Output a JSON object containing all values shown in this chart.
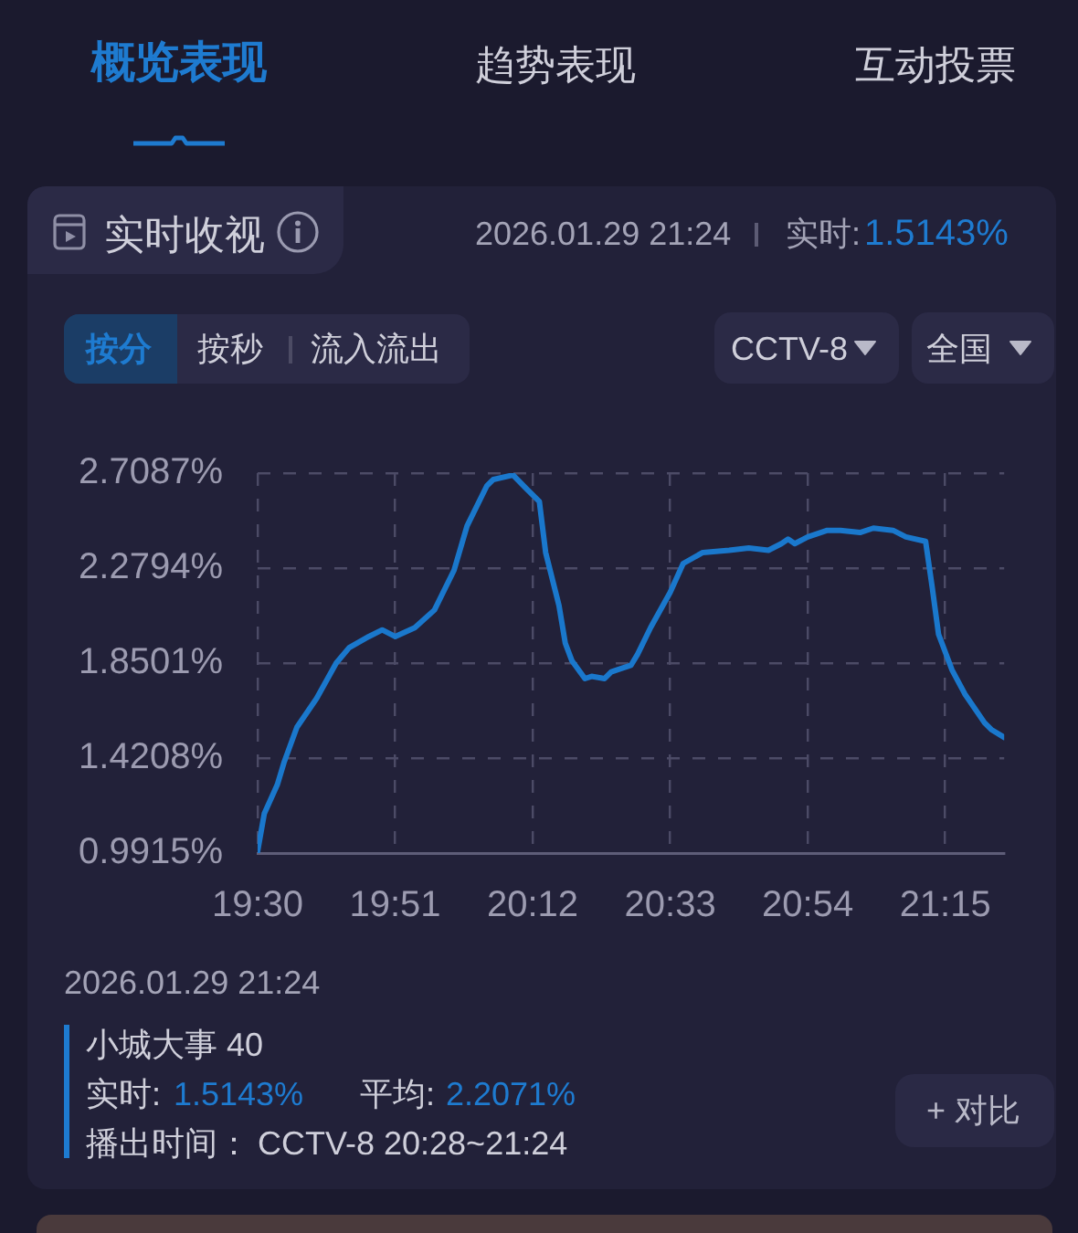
{
  "chart_data": {
    "type": "line",
    "title": "实时收视",
    "x": [
      19.5,
      19.517,
      19.55,
      19.567,
      19.6,
      19.65,
      19.7,
      19.733,
      19.783,
      19.817,
      19.85,
      19.9,
      19.95,
      20.0,
      20.033,
      20.083,
      20.1,
      20.15,
      20.183,
      20.217,
      20.233,
      20.267,
      20.283,
      20.3,
      20.333,
      20.35,
      20.383,
      20.4,
      20.45,
      20.467,
      20.5,
      20.55,
      20.583,
      20.633,
      20.7,
      20.75,
      20.8,
      20.833,
      20.85,
      20.867,
      20.9,
      20.95,
      20.983,
      21.033,
      21.067,
      21.117,
      21.15,
      21.2,
      21.217,
      21.233,
      21.267,
      21.3,
      21.35,
      21.367,
      21.4
    ],
    "values": [
      1.0,
      1.17,
      1.3,
      1.4,
      1.56,
      1.69,
      1.85,
      1.92,
      1.97,
      2.0,
      1.97,
      2.01,
      2.09,
      2.27,
      2.47,
      2.65,
      2.68,
      2.7,
      2.64,
      2.58,
      2.35,
      2.11,
      1.94,
      1.86,
      1.78,
      1.79,
      1.78,
      1.81,
      1.84,
      1.89,
      2.01,
      2.17,
      2.3,
      2.35,
      2.36,
      2.37,
      2.36,
      2.39,
      2.41,
      2.39,
      2.42,
      2.45,
      2.45,
      2.44,
      2.46,
      2.45,
      2.42,
      2.4,
      2.19,
      1.98,
      1.82,
      1.71,
      1.58,
      1.55,
      1.5143
    ],
    "color": "#1a78cc",
    "xlim": [
      19.5,
      21.4
    ],
    "xticks": [
      {
        "value": 19.5,
        "label": "19:30"
      },
      {
        "value": 19.85,
        "label": "19:51"
      },
      {
        "value": 20.2,
        "label": "20:12"
      },
      {
        "value": 20.55,
        "label": "20:33"
      },
      {
        "value": 20.9,
        "label": "20:54"
      },
      {
        "value": 21.25,
        "label": "21:15"
      }
    ],
    "ylim": [
      0.9915,
      2.7087
    ],
    "yticks": [
      {
        "value": 0.9915,
        "label": "0.9915%"
      },
      {
        "value": 1.4208,
        "label": "1.4208%"
      },
      {
        "value": 1.8501,
        "label": "1.8501%"
      },
      {
        "value": 2.2794,
        "label": "2.2794%"
      },
      {
        "value": 2.7087,
        "label": "2.7087%"
      }
    ],
    "grid": true,
    "annotations": [
      "概览表现",
      "趋势表现",
      "互动投票",
      "2026.01.29 21:24",
      "实时:",
      "1.5143%",
      "按分",
      "按秒",
      "流入流出",
      "CCTV-8",
      "全国",
      "2026.01.29 21:24",
      "小城大事 40",
      "实时:",
      "1.5143%",
      "平均:",
      "2.2071%",
      "播出时间：",
      "CCTV-8 20:28~21:24",
      "+ 对比"
    ]
  }
}
